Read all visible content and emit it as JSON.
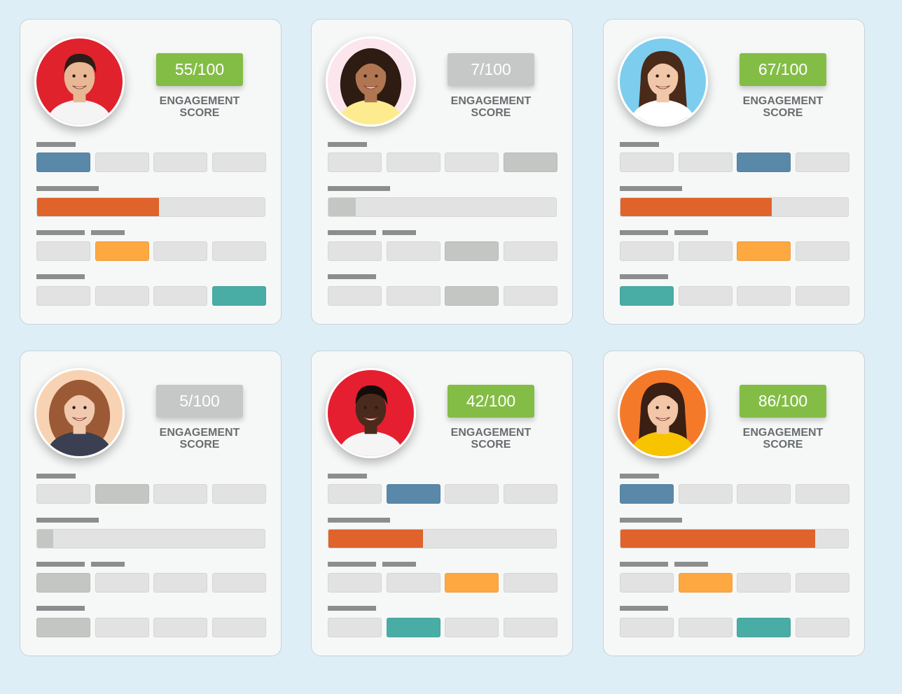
{
  "colors": {
    "score_good": "#84bd46",
    "score_low": "#c6c8c7",
    "segment_default": "#e2e2e2",
    "segment_blue": "#5a88a9",
    "segment_orange": "#fea841",
    "segment_teal": "#49ada6",
    "segment_gray": "#c4c6c3",
    "bar_orange": "#df632b",
    "bar_gray": "#c4c6c3"
  },
  "engagement_label": [
    "ENGAGEMENT",
    "SCORE"
  ],
  "profiles": [
    {
      "score_text": "55/100",
      "score_value": 55,
      "score_level": "good",
      "avatar": {
        "icon": "man-smiling-avatar-icon",
        "background": "#e0222c",
        "skin": "#e8b896",
        "hair": "#2b1d17",
        "shirt": "#f4f4f4"
      },
      "row1": {
        "active_index": 0,
        "color": "#5a88a9"
      },
      "progress": {
        "fraction": 0.535,
        "color": "#df632b"
      },
      "row3": {
        "active_index": 1,
        "color": "#fea841"
      },
      "row4": {
        "active_index": 3,
        "color": "#49ada6"
      }
    },
    {
      "score_text": "7/100",
      "score_value": 7,
      "score_level": "low",
      "avatar": {
        "icon": "woman-curly-hair-avatar-icon",
        "background": "#fbe6ee",
        "skin": "#b07652",
        "hair": "#2e1c12",
        "shirt": "#fdec8f"
      },
      "row1": {
        "active_index": 3,
        "color": "#c4c6c3"
      },
      "progress": {
        "fraction": 0.12,
        "color": "#c4c6c3"
      },
      "row3": {
        "active_index": 2,
        "color": "#c4c6c3"
      },
      "row4": {
        "active_index": 2,
        "color": "#c4c6c3"
      }
    },
    {
      "score_text": "67/100",
      "score_value": 67,
      "score_level": "good",
      "avatar": {
        "icon": "woman-long-hair-avatar-icon",
        "background": "#7dcdef",
        "skin": "#f0c7a8",
        "hair": "#4a2a18",
        "shirt": "#ffffff"
      },
      "row1": {
        "active_index": 2,
        "color": "#5a88a9"
      },
      "progress": {
        "fraction": 0.665,
        "color": "#df632b"
      },
      "row3": {
        "active_index": 2,
        "color": "#fea841"
      },
      "row4": {
        "active_index": 0,
        "color": "#49ada6"
      }
    },
    {
      "score_text": "5/100",
      "score_value": 5,
      "score_level": "low",
      "avatar": {
        "icon": "woman-wavy-hair-avatar-icon",
        "background": "#f7d3b4",
        "skin": "#f1c9ae",
        "hair": "#9b5a35",
        "shirt": "#3a3f52"
      },
      "row1": {
        "active_index": 1,
        "color": "#c4c6c3"
      },
      "progress": {
        "fraction": 0.07,
        "color": "#c4c6c3"
      },
      "row3": {
        "active_index": 0,
        "color": "#c4c6c3"
      },
      "row4": {
        "active_index": 0,
        "color": "#c4c6c3"
      }
    },
    {
      "score_text": "42/100",
      "score_value": 42,
      "score_level": "good",
      "avatar": {
        "icon": "man-beard-avatar-icon",
        "background": "#e51f30",
        "skin": "#4a2a1c",
        "hair": "#140c08",
        "shirt": "#f5f5f5"
      },
      "row1": {
        "active_index": 1,
        "color": "#5a88a9"
      },
      "progress": {
        "fraction": 0.415,
        "color": "#df632b"
      },
      "row3": {
        "active_index": 2,
        "color": "#fea841"
      },
      "row4": {
        "active_index": 1,
        "color": "#49ada6"
      }
    },
    {
      "score_text": "86/100",
      "score_value": 86,
      "score_level": "good",
      "avatar": {
        "icon": "woman-yellow-sweater-avatar-icon",
        "background": "#f47a2a",
        "skin": "#f2c6a6",
        "hair": "#3a1f14",
        "shirt": "#f7c400"
      },
      "row1": {
        "active_index": 0,
        "color": "#5a88a9"
      },
      "progress": {
        "fraction": 0.855,
        "color": "#df632b"
      },
      "row3": {
        "active_index": 1,
        "color": "#fea841"
      },
      "row4": {
        "active_index": 2,
        "color": "#49ada6"
      }
    }
  ]
}
